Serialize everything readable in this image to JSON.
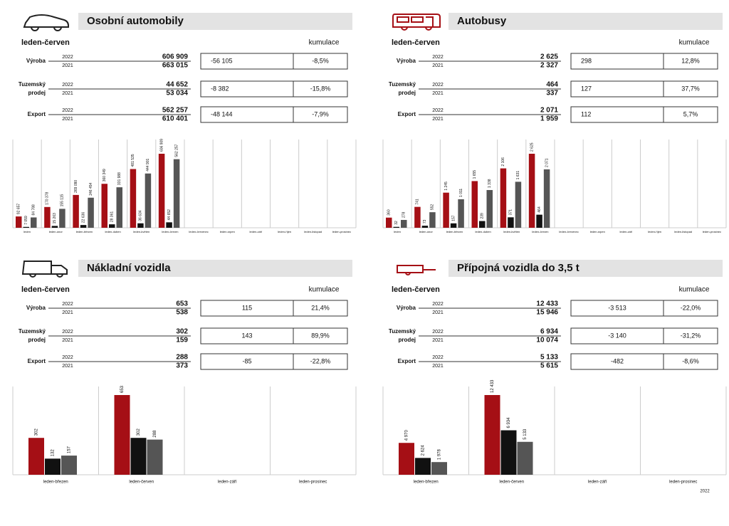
{
  "panels": [
    {
      "title": "Osobní automobily",
      "period": "leden-červen",
      "cumulative_label": "kumulace",
      "rows": [
        {
          "label": [
            "Výroba"
          ],
          "years": [
            "2022",
            "2021"
          ],
          "values": [
            "606 909",
            "663 015"
          ],
          "difference": "-56 105",
          "percent": "-8,5%"
        },
        {
          "label": [
            "Tuzemský",
            "prodej"
          ],
          "years": [
            "2022",
            "2021"
          ],
          "values": [
            "44 652",
            "53 034"
          ],
          "difference": "-8 382",
          "percent": "-15,8%"
        },
        {
          "label": [
            "Export"
          ],
          "years": [
            "2022",
            "2021"
          ],
          "values": [
            "562 257",
            "610 401"
          ],
          "difference": "-48 144",
          "percent": "-7,9%"
        }
      ],
      "chart": {
        "type": "bar",
        "categories": [
          "leden",
          "leden-únor",
          "leden-březen",
          "leden-duben",
          "leden-květen",
          "leden-červen",
          "leden-červenec",
          "leden-srpen",
          "leden-září",
          "leden-říjen",
          "leden-listopad",
          "leden-prosinec"
        ],
        "series": [
          {
            "color": "#a50f15",
            "values": [
              92657,
              170378,
              269090,
              360349,
              481535,
              606909,
              null,
              null,
              null,
              null,
              null,
              null
            ],
            "value_labels": [
              "92 657",
              "170 378",
              "269 090",
              "360 349",
              "481 535",
              "606 909",
              null,
              null,
              null,
              null,
              null,
              null
            ]
          },
          {
            "color": "#111111",
            "values": [
              7059,
              15263,
              22636,
              28361,
              36634,
              44652,
              null,
              null,
              null,
              null,
              null,
              null
            ],
            "value_labels": [
              "7 059",
              "15 263",
              "22 636",
              "28 361",
              "36 634",
              "44 652",
              null,
              null,
              null,
              null,
              null,
              null
            ]
          },
          {
            "color": "#555555",
            "values": [
              84788,
              155115,
              246454,
              331988,
              444901,
              562257,
              null,
              null,
              null,
              null,
              null,
              null
            ],
            "value_labels": [
              "84 788",
              "155 115",
              "246 454",
              "331 988",
              "444 901",
              "562 257",
              null,
              null,
              null,
              null,
              null,
              null
            ]
          }
        ]
      }
    },
    {
      "title": "Autobusy",
      "period": "leden-červen",
      "cumulative_label": "kumulace",
      "rows": [
        {
          "label": [
            "Výroba"
          ],
          "years": [
            "2022",
            "2021"
          ],
          "values": [
            "2 625",
            "2 327"
          ],
          "difference": "298",
          "percent": "12,8%"
        },
        {
          "label": [
            "Tuzemský",
            "prodej"
          ],
          "years": [
            "2022",
            "2021"
          ],
          "values": [
            "464",
            "337"
          ],
          "difference": "127",
          "percent": "37,7%"
        },
        {
          "label": [
            "Export"
          ],
          "years": [
            "2022",
            "2021"
          ],
          "values": [
            "2 071",
            "1 959"
          ],
          "difference": "112",
          "percent": "5,7%"
        }
      ],
      "chart": {
        "type": "bar",
        "categories": [
          "leden",
          "leden-únor",
          "leden-březen",
          "leden-duben",
          "leden-květen",
          "leden-červen",
          "leden-červenec",
          "leden-srpen",
          "leden-září",
          "leden-říjen",
          "leden-listopad",
          "leden-prosinec"
        ],
        "series": [
          {
            "color": "#a50f15",
            "values": [
              360,
              741,
              1245,
              1655,
              2106,
              2625,
              null,
              null,
              null,
              null,
              null,
              null
            ],
            "value_labels": [
              "360",
              "741",
              "1 245",
              "1 655",
              "2 106",
              "2 625",
              null,
              null,
              null,
              null,
              null,
              null
            ]
          },
          {
            "color": "#111111",
            "values": [
              32,
              73,
              157,
              239,
              371,
              464,
              null,
              null,
              null,
              null,
              null,
              null
            ]
          },
          {
            "color": "#555555",
            "values": [
              278,
              552,
              1011,
              1338,
              1631,
              2071,
              null,
              null,
              null,
              null,
              null,
              null
            ],
            "value_labels": [
              "278",
              "552",
              "1 011",
              "1 338",
              "1 631",
              "2 071",
              null,
              null,
              null,
              null,
              null,
              null
            ]
          }
        ]
      }
    },
    {
      "title": "Nákladní vozidla",
      "period": "leden-červen",
      "cumulative_label": "kumulace",
      "rows": [
        {
          "label": [
            "Výroba"
          ],
          "years": [
            "2022",
            "2021"
          ],
          "values": [
            "653",
            "538"
          ],
          "difference": "115",
          "percent": "21,4%"
        },
        {
          "label": [
            "Tuzemský",
            "prodej"
          ],
          "years": [
            "2022",
            "2021"
          ],
          "values": [
            "302",
            "159"
          ],
          "difference": "143",
          "percent": "89,9%"
        },
        {
          "label": [
            "Export"
          ],
          "years": [
            "2022",
            "2021"
          ],
          "values": [
            "288",
            "373"
          ],
          "difference": "-85",
          "percent": "-22,8%"
        }
      ],
      "chart": {
        "type": "bar",
        "categories": [
          "leden-březen",
          "leden-červen",
          "leden-září",
          "leden-prosinec"
        ],
        "series": [
          {
            "color": "#a50f15",
            "values": [
              302,
              653,
              null,
              null
            ]
          },
          {
            "color": "#111111",
            "values": [
              132,
              302,
              null,
              null
            ]
          },
          {
            "color": "#555555",
            "values": [
              157,
              288,
              null,
              null
            ]
          }
        ]
      }
    },
    {
      "title": "Přípojná vozidla do 3,5 t",
      "period": "leden-červen",
      "cumulative_label": "kumulace",
      "rows": [
        {
          "label": [
            "Výroba"
          ],
          "years": [
            "2022",
            "2021"
          ],
          "values": [
            "12 433",
            "15 946"
          ],
          "difference": "-3 513",
          "percent": "-22,0%"
        },
        {
          "label": [
            "Tuzemský",
            "prodej"
          ],
          "years": [
            "2022",
            "2021"
          ],
          "values": [
            "6 934",
            "10 074"
          ],
          "difference": "-3 140",
          "percent": "-31,2%"
        },
        {
          "label": [
            "Export"
          ],
          "years": [
            "2022",
            "2021"
          ],
          "values": [
            "5 133",
            "5 615"
          ],
          "difference": "-482",
          "percent": "-8,6%"
        }
      ],
      "chart": {
        "type": "bar",
        "categories": [
          "leden-březen",
          "leden-červen",
          "leden-září",
          "leden-prosinec"
        ],
        "series": [
          {
            "color": "#a50f15",
            "values": [
              4970,
              12433,
              null,
              null
            ],
            "value_labels": [
              "4 970",
              "12 433",
              null,
              null
            ]
          },
          {
            "color": "#111111",
            "values": [
              2624,
              6934,
              null,
              null
            ],
            "value_labels": [
              "2 624",
              "6 934",
              null,
              null
            ]
          },
          {
            "color": "#555555",
            "values": [
              1978,
              5133,
              null,
              null
            ],
            "value_labels": [
              "1 978",
              "5 133",
              null,
              null
            ]
          }
        ]
      }
    }
  ],
  "footer": "2022"
}
